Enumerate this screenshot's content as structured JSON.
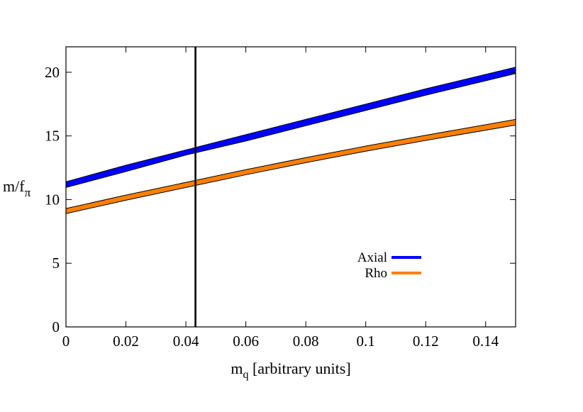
{
  "chart_data": {
    "type": "area",
    "xlabel_main": "m",
    "xlabel_sub": "q",
    "xlabel_rest": " [arbitrary units]",
    "ylabel_main": "m/f",
    "ylabel_sub": "π",
    "xlim": [
      0,
      0.15
    ],
    "ylim": [
      0,
      22
    ],
    "x_ticks": [
      0,
      0.02,
      0.04,
      0.06,
      0.08,
      0.1,
      0.12,
      0.14
    ],
    "x_tick_labels": [
      "0",
      "0.02",
      "0.04",
      "0.06",
      "0.08",
      "0.1",
      "0.12",
      "0.14"
    ],
    "y_ticks": [
      0,
      5,
      10,
      15,
      20
    ],
    "y_tick_labels": [
      "0",
      "5",
      "10",
      "15",
      "20"
    ],
    "grid": false,
    "legend_position": "lower-right",
    "vertical_line_x": 0.0432,
    "series": [
      {
        "name": "Axial",
        "color": "#0000ff",
        "x": [
          0,
          0.02,
          0.04,
          0.06,
          0.08,
          0.1,
          0.12,
          0.15
        ],
        "upper": [
          11.4,
          12.7,
          13.9,
          15.1,
          16.3,
          17.5,
          18.7,
          20.4
        ],
        "lower": [
          10.95,
          12.2,
          13.5,
          14.6,
          15.8,
          17.0,
          18.2,
          19.9
        ]
      },
      {
        "name": "Rho",
        "color": "#ff8000",
        "x": [
          0,
          0.02,
          0.04,
          0.06,
          0.08,
          0.1,
          0.12,
          0.15
        ],
        "upper": [
          9.3,
          10.35,
          11.35,
          12.35,
          13.3,
          14.2,
          15.05,
          16.3
        ],
        "lower": [
          8.9,
          9.95,
          10.95,
          11.95,
          12.9,
          13.8,
          14.65,
          15.85
        ]
      }
    ]
  }
}
